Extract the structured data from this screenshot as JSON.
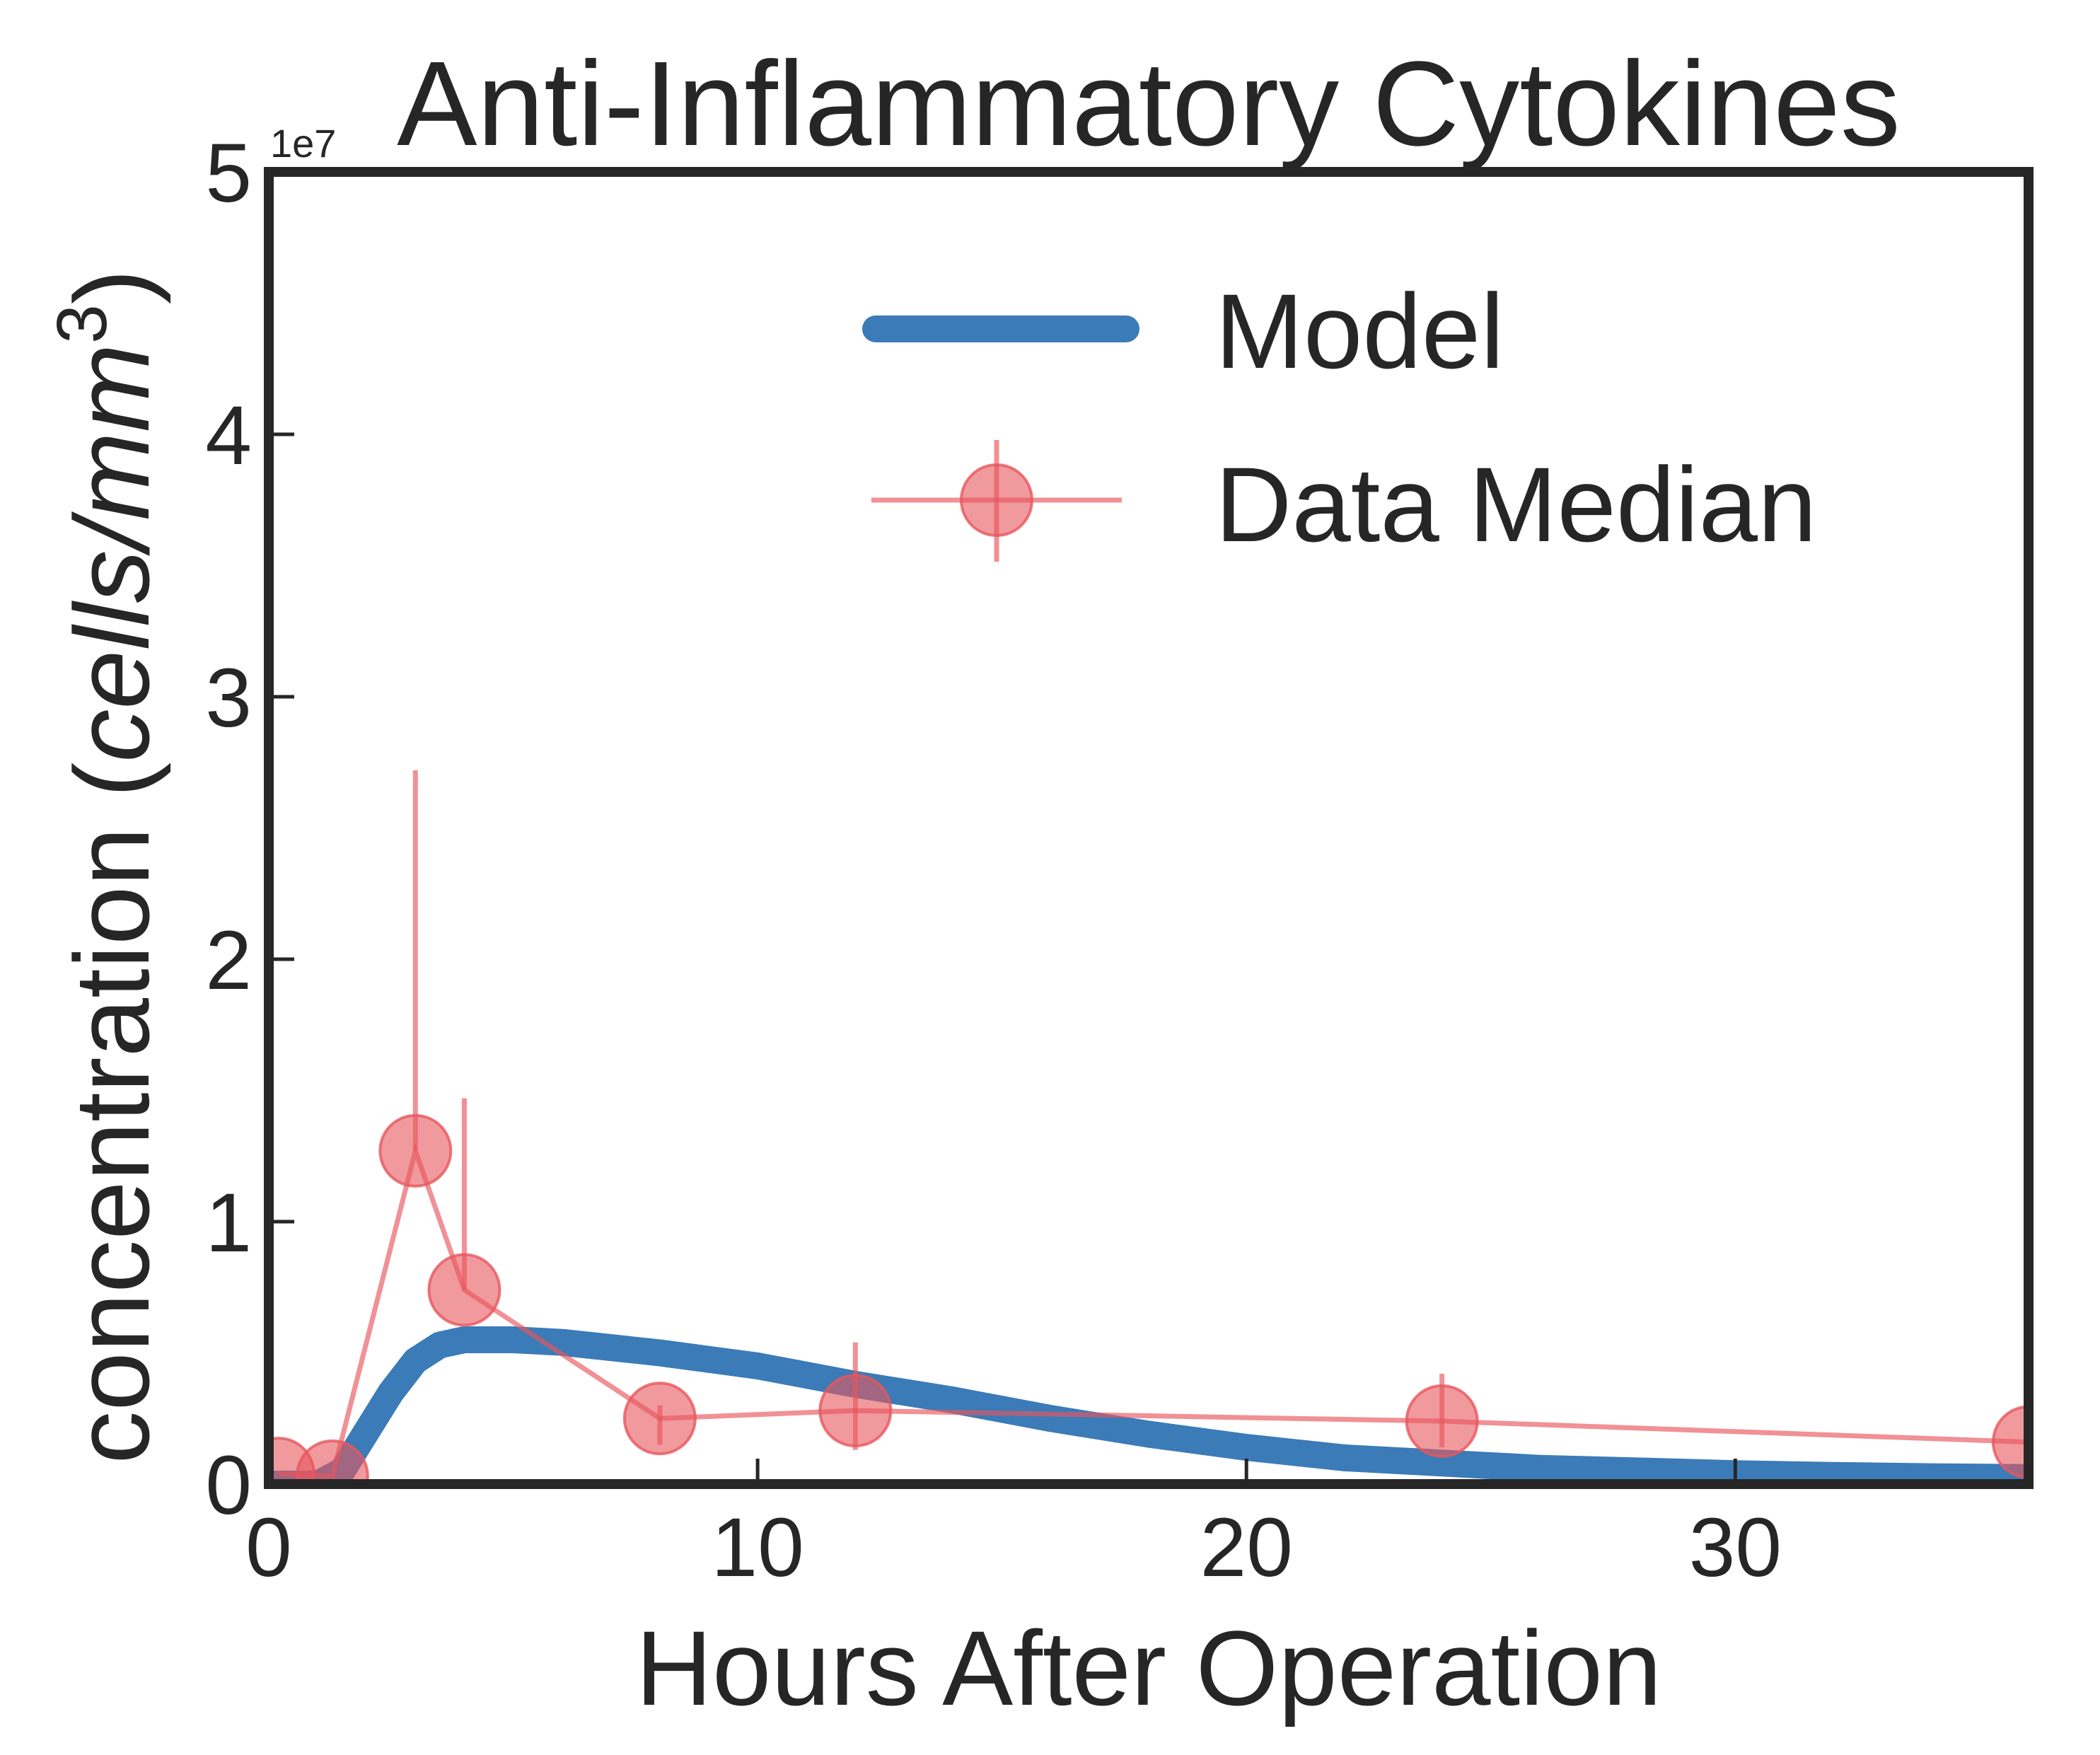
{
  "chart_data": {
    "type": "line",
    "title": "Anti-Inflammatory Cytokines",
    "xlabel": "Hours After Operation",
    "ylabel_main": "concentration (",
    "ylabel_unit": "cells/mm",
    "ylabel_sup": "3",
    "ylabel_close": ")",
    "y_multiplier": "1e7",
    "xlim": [
      0,
      36
    ],
    "ylim": [
      0,
      50000000
    ],
    "grid": false,
    "legend_position": "top-right",
    "x_ticks": [
      {
        "value": 0,
        "label": "0"
      },
      {
        "value": 10,
        "label": "10"
      },
      {
        "value": 20,
        "label": "20"
      },
      {
        "value": 30,
        "label": "30"
      }
    ],
    "y_ticks": [
      {
        "value": 0,
        "label": "0"
      },
      {
        "value": 10000000,
        "label": "1"
      },
      {
        "value": 20000000,
        "label": "2"
      },
      {
        "value": 30000000,
        "label": "3"
      },
      {
        "value": 40000000,
        "label": "4"
      },
      {
        "value": 50000000,
        "label": "5"
      }
    ],
    "series": [
      {
        "name": "Model",
        "kind": "line",
        "color": "#3a7bb8",
        "x": [
          0,
          1,
          1.5,
          2,
          2.5,
          3,
          3.5,
          4,
          5,
          6,
          8,
          10,
          12,
          14,
          16,
          18,
          20,
          22,
          24,
          26,
          28,
          30,
          32,
          34,
          36
        ],
        "y": [
          0,
          0,
          500000,
          2000000,
          3500000,
          4700000,
          5300000,
          5500000,
          5500000,
          5400000,
          5000000,
          4500000,
          3800000,
          3200000,
          2500000,
          1900000,
          1400000,
          1000000,
          800000,
          600000,
          500000,
          400000,
          330000,
          280000,
          250000
        ]
      },
      {
        "name": "Data Median",
        "kind": "errorbar",
        "color": "#e8565e",
        "x": [
          0.2,
          1.3,
          3,
          4,
          8,
          12,
          24,
          36
        ],
        "y": [
          400000,
          300000,
          12700000,
          7400000,
          2500000,
          2800000,
          2400000,
          1600000
        ],
        "yerr_low": [
          0,
          0,
          0,
          0,
          1000000,
          1500000,
          1000000,
          0
        ],
        "yerr_high": [
          0,
          0,
          14500000,
          7300000,
          500000,
          2600000,
          1800000,
          0
        ]
      }
    ]
  }
}
